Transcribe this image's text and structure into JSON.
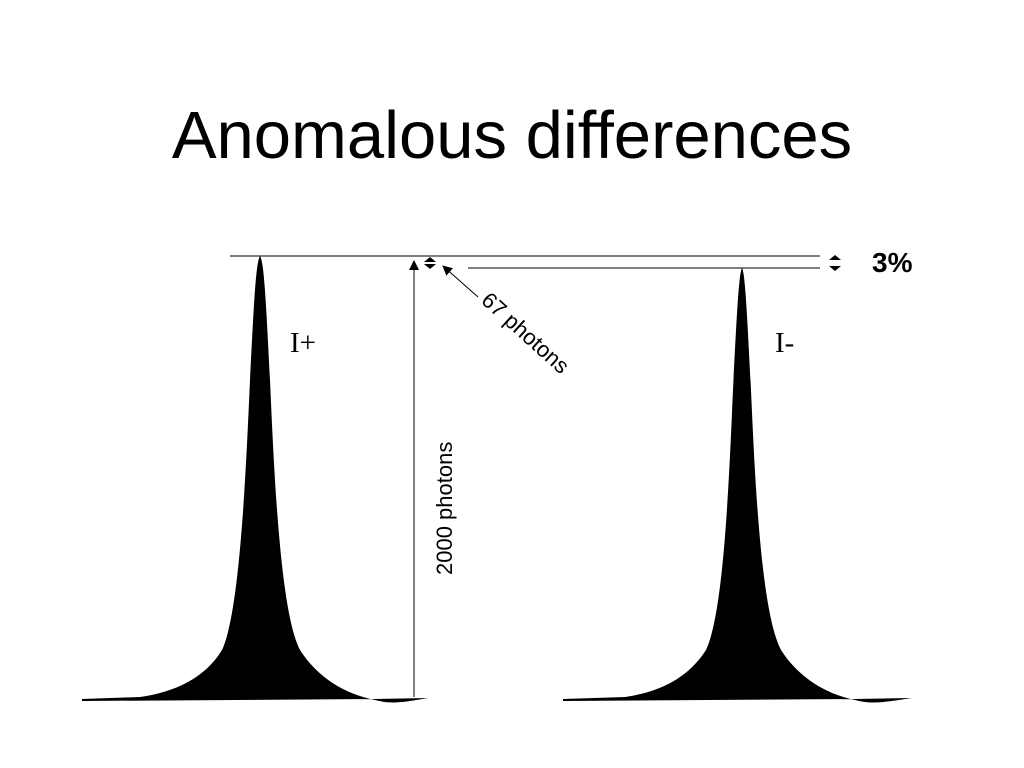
{
  "title": "Anomalous differences",
  "peaks": [
    {
      "label": "I+",
      "photons": 2000
    },
    {
      "label": "I-",
      "photons": 1933
    }
  ],
  "annotations": {
    "height": "2000 photons",
    "difference": "67 photons",
    "percent": "3%"
  },
  "colors": {
    "peak_fill": "#000000",
    "line": "#000000",
    "background": "#ffffff"
  }
}
